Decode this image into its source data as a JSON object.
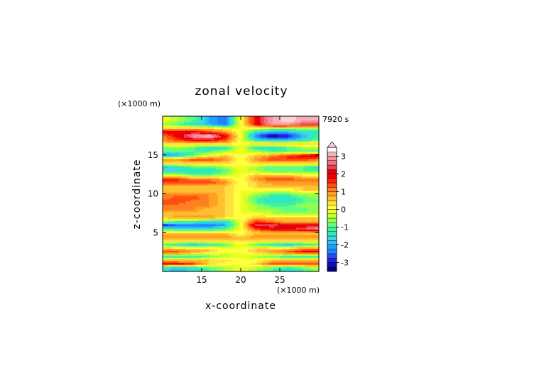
{
  "chart_data": {
    "type": "heatmap",
    "title": "zonal velocity",
    "xlabel": "x-coordinate",
    "ylabel": "z-coordinate",
    "x_unit": "(×1000 m)",
    "y_unit": "(×1000 m)",
    "time_label": "7920 s",
    "xlim": [
      10,
      30
    ],
    "ylim": [
      0,
      20
    ],
    "x_ticks": [
      "15",
      "20",
      "25"
    ],
    "x_tick_values": [
      15,
      20,
      25
    ],
    "y_ticks": [
      "5",
      "10",
      "15"
    ],
    "y_tick_values": [
      5,
      10,
      15
    ],
    "colorbar": {
      "tick_labels": [
        "3",
        "2",
        "1",
        "0",
        "-1",
        "-2",
        "-3"
      ],
      "tick_values": [
        3,
        2,
        1,
        0,
        -1,
        -2,
        -3
      ],
      "levels": [
        -3.5,
        -3.25,
        -3,
        -2.75,
        -2.5,
        -2.25,
        -2,
        -1.75,
        -1.5,
        -1.25,
        -1,
        -0.75,
        -0.5,
        -0.25,
        0,
        0.25,
        0.5,
        0.75,
        1,
        1.25,
        1.5,
        1.75,
        2,
        2.25,
        2.5,
        2.75,
        3,
        3.25,
        3.5
      ],
      "colors": [
        "#000080",
        "#1010b0",
        "#2020e0",
        "#2050f0",
        "#2080ff",
        "#20a0ff",
        "#30c0f0",
        "#40d8e0",
        "#30e8c0",
        "#40f0a0",
        "#60ff80",
        "#90ff50",
        "#c0ff30",
        "#e8ff20",
        "#ffff40",
        "#ffe040",
        "#ffc030",
        "#ffa020",
        "#ff8020",
        "#ff5010",
        "#ff2000",
        "#f00000",
        "#e00010",
        "#f04050",
        "#f07080",
        "#f89098",
        "#f8b0b8",
        "#ffd0d0"
      ]
    },
    "field": {
      "x": [
        10,
        12,
        14,
        16,
        18,
        20,
        22,
        24,
        26,
        28,
        30
      ],
      "z": [
        0.5,
        1,
        1.5,
        2,
        2.5,
        3,
        3.5,
        4,
        4.5,
        5,
        5.5,
        6,
        6.5,
        7,
        7.5,
        8,
        8.5,
        9,
        9.5,
        10,
        10.5,
        11,
        11.5,
        12,
        12.5,
        13,
        13.5,
        14,
        14.5,
        15,
        15.5,
        16,
        16.5,
        17,
        17.5,
        18,
        18.5,
        19,
        19.5
      ],
      "u": [
        [
          -1.5,
          -2,
          -1.5,
          -1,
          -0.5,
          0,
          -0.5,
          -1,
          -1.5,
          -1,
          -0.5
        ],
        [
          2,
          2,
          1.5,
          0.5,
          0,
          0,
          0.5,
          1.5,
          1.5,
          1.5,
          1.5
        ],
        [
          0.5,
          0.5,
          0.5,
          0.5,
          0.5,
          0,
          0,
          0.5,
          0.5,
          0.5,
          0.5
        ],
        [
          -1.5,
          -1.5,
          -1.5,
          -1,
          -0.5,
          0,
          -0.5,
          -1,
          -1.5,
          -1.5,
          -1.5
        ],
        [
          1.5,
          1.5,
          1,
          0.5,
          0,
          0,
          0.5,
          1,
          1.5,
          2,
          2
        ],
        [
          0.5,
          0.5,
          0.5,
          0.5,
          0,
          0,
          0.5,
          0.5,
          0.5,
          1,
          1
        ],
        [
          -1,
          -1.5,
          -2,
          -1.5,
          -1,
          0,
          -1,
          -1.5,
          -2,
          -1.5,
          -1
        ],
        [
          0.5,
          0.5,
          0.5,
          0.5,
          0.5,
          0.5,
          0.5,
          0.5,
          0.5,
          0.5,
          0.5
        ],
        [
          1,
          1,
          1,
          1,
          1,
          0.5,
          1,
          1,
          1,
          1,
          1
        ],
        [
          0.5,
          0.5,
          0.5,
          0.5,
          0.5,
          0,
          0.5,
          0.5,
          0.5,
          0.5,
          0.5
        ],
        [
          -1,
          -1.5,
          -1.5,
          -1.5,
          -1,
          0,
          1.5,
          2,
          2,
          2.5,
          3
        ],
        [
          -3,
          -2.5,
          -2.5,
          -2.5,
          -2,
          0,
          2.5,
          2.5,
          2,
          2,
          2
        ],
        [
          -0.5,
          -1,
          -1,
          -1.5,
          -1.5,
          0,
          1.5,
          1,
          0.5,
          0.5,
          0.5
        ],
        [
          0.5,
          1,
          1,
          1,
          0.5,
          0,
          0.5,
          0.5,
          0.5,
          0.5,
          0.5
        ],
        [
          0.5,
          0.5,
          0.5,
          0.5,
          0.5,
          0,
          0,
          -0.5,
          -0.5,
          -0.5,
          -0.5
        ],
        [
          1,
          1,
          1,
          0.5,
          0.5,
          0,
          -0.5,
          -0.5,
          -1,
          -1,
          -0.5
        ],
        [
          1,
          1,
          1,
          1,
          0.5,
          0,
          -0.5,
          -1,
          -1,
          -0.5,
          -0.5
        ],
        [
          1.5,
          1.5,
          1,
          1,
          0.5,
          0,
          -1,
          -1.5,
          -1.5,
          -1,
          -1
        ],
        [
          1,
          1.5,
          1.5,
          1,
          0.5,
          0,
          -1,
          -1.5,
          -1.5,
          -1,
          -0.5
        ],
        [
          1,
          1,
          1,
          1,
          0.5,
          0,
          -0.5,
          -1,
          -1,
          -0.5,
          -0.5
        ],
        [
          0.5,
          0.5,
          0.5,
          0.5,
          0.5,
          0,
          0,
          0,
          0,
          0.5,
          0.5
        ],
        [
          0.5,
          0.5,
          0.5,
          0.5,
          0.5,
          0,
          0.5,
          0.5,
          0.5,
          0.5,
          0.5
        ],
        [
          1.5,
          1.5,
          1.5,
          1.5,
          1,
          0,
          0.5,
          1,
          1,
          1,
          1
        ],
        [
          1.5,
          1.5,
          1,
          1,
          0.5,
          0,
          1,
          1.5,
          1.5,
          1,
          1
        ],
        [
          -0.5,
          -0.5,
          -1,
          -1,
          -0.5,
          0,
          0.5,
          0.5,
          0.5,
          0,
          0
        ],
        [
          -1.5,
          -1.5,
          -1.5,
          -1.5,
          -1,
          0,
          -0.5,
          -1,
          -1,
          -1,
          -1
        ],
        [
          -2,
          -1.5,
          -1,
          -1,
          -0.5,
          0,
          -0.5,
          -1,
          -1,
          -1,
          -1.5
        ],
        [
          0.5,
          0.5,
          0.5,
          0.5,
          0.5,
          0,
          0.5,
          0.5,
          0.5,
          0.5,
          0.5
        ],
        [
          1,
          1,
          1.5,
          1.5,
          1,
          0,
          1,
          1.5,
          1.5,
          1.5,
          1
        ],
        [
          -2.5,
          -2,
          -1,
          0,
          0.5,
          0,
          0.5,
          1,
          1.5,
          2,
          2.5
        ],
        [
          -1,
          -1,
          -1,
          -1,
          -0.5,
          0,
          -0.5,
          -1,
          -1,
          -1,
          -1
        ],
        [
          -1,
          -0.5,
          -1,
          -1.5,
          -1.5,
          0,
          -1.5,
          -1.5,
          -1,
          -0.5,
          -0.5
        ],
        [
          0.5,
          0.5,
          0.5,
          0.5,
          0.5,
          0,
          0.5,
          0.5,
          0.5,
          0.5,
          0.5
        ],
        [
          1,
          1.5,
          2,
          2,
          1.5,
          0,
          -1.5,
          -2,
          -2,
          -1.5,
          -1
        ],
        [
          1,
          2,
          3,
          3.5,
          2,
          0,
          -2.5,
          -3.5,
          -3,
          -2,
          -1
        ],
        [
          2,
          2,
          2,
          1.5,
          1,
          0,
          -1.5,
          -2,
          -2,
          -1.5,
          -1.5
        ],
        [
          0.5,
          0.5,
          0.5,
          0.5,
          0,
          0,
          0,
          -0.5,
          -0.5,
          -0.5,
          -0.5
        ],
        [
          -0.5,
          -1,
          -1.5,
          -2,
          -2.5,
          0,
          2,
          3,
          3,
          2.5,
          2.5
        ],
        [
          0,
          -0.5,
          -1,
          -2,
          -2.5,
          0,
          2,
          3,
          3.5,
          3,
          3
        ]
      ]
    }
  }
}
